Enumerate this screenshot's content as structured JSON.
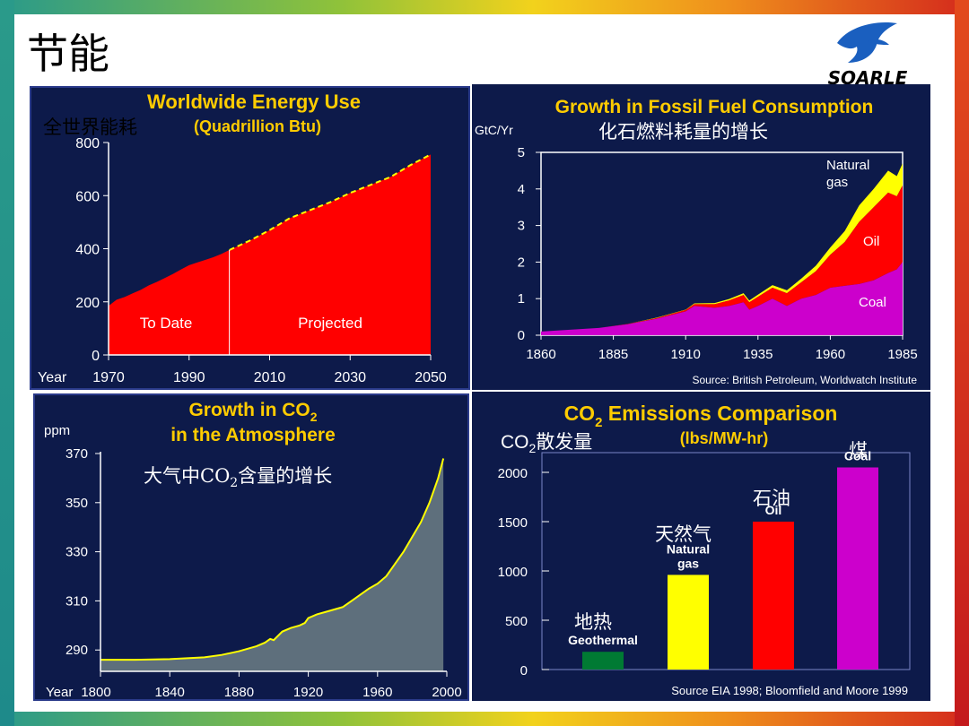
{
  "slide": {
    "title": "节能",
    "logo_text": "SOARLE"
  },
  "colors": {
    "panel_bg": "#0d1a4a",
    "title_yellow": "#ffcc00",
    "red": "#ff0000",
    "yellow": "#ffff00",
    "magenta": "#cc00cc",
    "green": "#007a33",
    "gray_area": "#5e6f7c"
  },
  "annotations": {
    "energy_cn": "全世界能耗",
    "fossil_cn": "化石燃料耗量的增长",
    "co2_cn_prefix": "大气中CO",
    "co2_cn_sub": "2",
    "co2_cn_suffix": "含量的增长",
    "emis_cn_prefix": "CO",
    "emis_cn_sub": "2",
    "emis_cn_suffix": "散发量",
    "coal_cn": "煤",
    "oil_cn": "石油",
    "gas_cn": "天然气",
    "geo_cn": "地热"
  },
  "chart_data": [
    {
      "id": "energy",
      "type": "area",
      "title": "Worldwide Energy Use",
      "subtitle": "(Quadrillion Btu)",
      "xlabel": "Year",
      "x_ticks": [
        1970,
        1990,
        2010,
        2030,
        2050
      ],
      "y_ticks": [
        0,
        200,
        400,
        600,
        800
      ],
      "xlim": [
        1970,
        2050
      ],
      "ylim": [
        0,
        800
      ],
      "divider_x": 2000,
      "region_labels": [
        "To Date",
        "Projected"
      ],
      "x": [
        1970,
        1972,
        1974,
        1976,
        1978,
        1980,
        1982,
        1984,
        1986,
        1988,
        1990,
        1992,
        1994,
        1996,
        1998,
        2000,
        2005,
        2010,
        2015,
        2020,
        2025,
        2030,
        2035,
        2040,
        2045,
        2050
      ],
      "y": [
        185,
        208,
        218,
        232,
        245,
        262,
        275,
        290,
        305,
        322,
        338,
        348,
        358,
        368,
        380,
        395,
        430,
        470,
        515,
        545,
        575,
        610,
        640,
        670,
        715,
        755
      ]
    },
    {
      "id": "fossil",
      "type": "area",
      "title": "Growth in Fossil Fuel Consumption",
      "ylabel": "GtC/Yr",
      "source": "Source: British Petroleum, Worldwatch Institute",
      "x_ticks": [
        1860,
        1885,
        1910,
        1935,
        1960,
        1985
      ],
      "y_ticks": [
        0,
        1,
        2,
        3,
        4,
        5
      ],
      "xlim": [
        1860,
        1985
      ],
      "ylim": [
        0,
        5
      ],
      "x": [
        1860,
        1870,
        1880,
        1890,
        1900,
        1910,
        1913,
        1920,
        1925,
        1930,
        1932,
        1935,
        1940,
        1945,
        1950,
        1955,
        1960,
        1965,
        1970,
        1975,
        1980,
        1983,
        1985
      ],
      "series": [
        {
          "name": "Coal",
          "values": [
            0.1,
            0.15,
            0.2,
            0.3,
            0.45,
            0.65,
            0.8,
            0.75,
            0.8,
            0.9,
            0.7,
            0.8,
            1.0,
            0.8,
            1.0,
            1.1,
            1.3,
            1.35,
            1.4,
            1.5,
            1.7,
            1.8,
            2.0
          ]
        },
        {
          "name": "Oil",
          "values": [
            0,
            0,
            0,
            0.01,
            0.02,
            0.04,
            0.05,
            0.1,
            0.15,
            0.2,
            0.2,
            0.25,
            0.3,
            0.35,
            0.45,
            0.65,
            0.9,
            1.2,
            1.7,
            2.0,
            2.2,
            2.0,
            2.1
          ]
        },
        {
          "name": "Natural gas",
          "values": [
            0,
            0,
            0,
            0,
            0.01,
            0.01,
            0.02,
            0.03,
            0.04,
            0.05,
            0.05,
            0.06,
            0.07,
            0.08,
            0.1,
            0.15,
            0.2,
            0.3,
            0.45,
            0.5,
            0.6,
            0.55,
            0.6
          ]
        }
      ],
      "series_labels": [
        "Natural gas",
        "Oil",
        "Coal"
      ]
    },
    {
      "id": "co2",
      "type": "area",
      "title_line1": "Growth in CO",
      "title_sub": "2",
      "title_line2": "in the Atmosphere",
      "ylabel": "ppm",
      "xlabel": "Year",
      "x_ticks": [
        1800,
        1840,
        1880,
        1920,
        1960,
        2000
      ],
      "y_ticks": [
        290,
        310,
        330,
        350,
        370
      ],
      "xlim": [
        1800,
        2000
      ],
      "ylim": [
        280,
        370
      ],
      "x": [
        1800,
        1820,
        1840,
        1860,
        1870,
        1880,
        1890,
        1895,
        1898,
        1900,
        1905,
        1910,
        1915,
        1918,
        1920,
        1925,
        1930,
        1935,
        1940,
        1945,
        1950,
        1955,
        1960,
        1965,
        1970,
        1975,
        1980,
        1985,
        1990,
        1995,
        1998
      ],
      "y": [
        286,
        286,
        286.3,
        287,
        288,
        289.5,
        291.5,
        293,
        294.5,
        294,
        297.5,
        299,
        300,
        301,
        303,
        304.5,
        305.5,
        306.5,
        307.5,
        310,
        312.5,
        315,
        317,
        320,
        325,
        330,
        336,
        342,
        350,
        360,
        368
      ]
    },
    {
      "id": "emissions",
      "type": "bar",
      "title_prefix": "CO",
      "title_sub": "2",
      "title_suffix": " Emissions Comparison",
      "subtitle": "(lbs/MW-hr)",
      "source": "Source EIA 1998; Bloomfield and Moore 1999",
      "categories": [
        "Geothermal",
        "Natural gas",
        "Oil",
        "Coal"
      ],
      "category_labels": [
        [
          "Geothermal"
        ],
        [
          "Natural",
          "gas"
        ],
        [
          "Oil"
        ],
        [
          "Coal"
        ]
      ],
      "values": [
        180,
        960,
        1500,
        2050
      ],
      "y_ticks": [
        0,
        500,
        1000,
        1500,
        2000
      ],
      "ylim": [
        0,
        2200
      ]
    }
  ]
}
